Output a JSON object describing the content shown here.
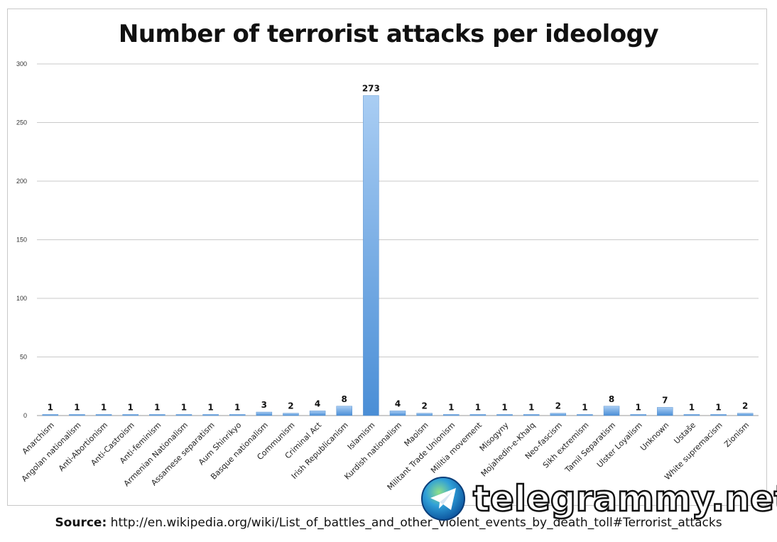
{
  "chart_data": {
    "type": "bar",
    "title": "Number of terrorist attacks per ideology",
    "categories": [
      "Anarchism",
      "Angolan nationalism",
      "Anti-Abortionism",
      "Anti-Castroism",
      "Anti-feminism",
      "Armenian Nationalism",
      "Assamese separatism",
      "Aum Shinrikyo",
      "Basque nationalism",
      "Communism",
      "Criminal Act",
      "Irish Republicanism",
      "Islamism",
      "Kurdish nationalism",
      "Maoism",
      "Militant Trade Unionism",
      "Militia movement",
      "Misogyny",
      "Mojahedin-e-Khalq",
      "Neo-fascism",
      "Sikh extremism",
      "Tamil Separatism",
      "Ulster Loyalism",
      "Unknown",
      "Ustaše",
      "White supremacism",
      "Zionism"
    ],
    "values": [
      1,
      1,
      1,
      1,
      1,
      1,
      1,
      1,
      3,
      2,
      4,
      8,
      273,
      4,
      2,
      1,
      1,
      1,
      1,
      2,
      1,
      8,
      1,
      7,
      1,
      1,
      2
    ],
    "yticks": [
      0,
      50,
      100,
      150,
      200,
      250,
      300
    ],
    "ylim": [
      0,
      300
    ],
    "grid": true,
    "bar_color_top": "#a9cdf3",
    "bar_color_bottom": "#4a8ed6"
  },
  "source": {
    "label": "Source:",
    "text": " http://en.wikipedia.org/wiki/List_of_battles_and_other_violent_events_by_death_toll#Terrorist_attacks"
  },
  "watermark": {
    "text": "telegrammy.net",
    "icon": "telegram-paper-plane-icon"
  }
}
